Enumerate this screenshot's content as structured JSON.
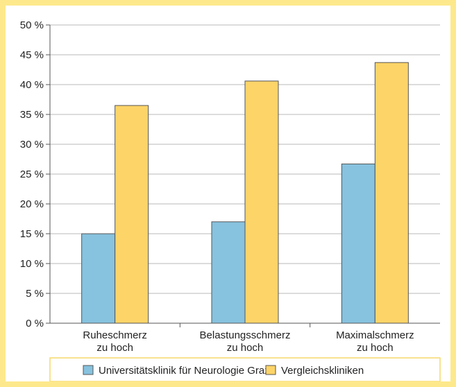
{
  "chart_data": {
    "type": "bar",
    "categories": [
      [
        "Ruheschmerz",
        "zu hoch"
      ],
      [
        "Belastungsschmerz",
        "zu hoch"
      ],
      [
        "Maximalschmerz",
        "zu hoch"
      ]
    ],
    "series": [
      {
        "name": "Universitätsklinik für Neurologie Graz",
        "values": [
          15,
          17,
          26.7
        ],
        "color": "#87c2de"
      },
      {
        "name": "Vergleichskliniken",
        "values": [
          36.5,
          40.6,
          43.7
        ],
        "color": "#fdd468"
      }
    ],
    "y_ticks": [
      "0 %",
      "5 %",
      "10 %",
      "15 %",
      "20 %",
      "25 %",
      "30 %",
      "35 %",
      "40 %",
      "45 %",
      "50 %"
    ],
    "ylim": [
      0,
      50
    ],
    "grid": true,
    "legend_position": "bottom",
    "colors": {
      "frame": "#fde98c",
      "grid": "#b8b8b8",
      "axis": "#555555"
    }
  }
}
